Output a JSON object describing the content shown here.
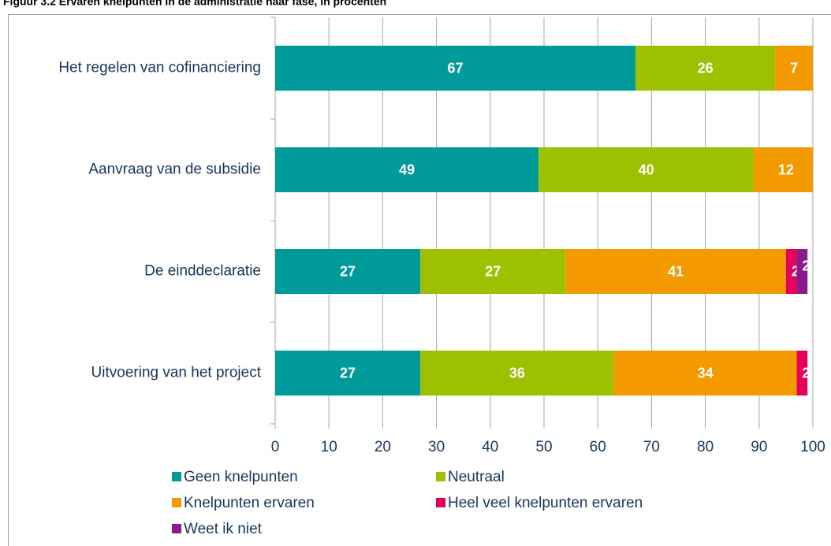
{
  "chart_data": {
    "type": "stacked-barh",
    "title": "Figuur 3.2        Ervaren knelpunten in de administratie naar fase, in procenten",
    "categories": [
      "Het regelen van cofinanciering",
      "Aanvraag van de subsidie",
      "De einddeclaratie",
      "Uitvoering van het project"
    ],
    "series": [
      {
        "name": "Geen knelpunten",
        "color": "#009a9a",
        "values": [
          67,
          49,
          27,
          27
        ]
      },
      {
        "name": "Neutraal",
        "color": "#9dc100",
        "values": [
          26,
          40,
          27,
          36
        ]
      },
      {
        "name": "Knelpunten ervaren",
        "color": "#f39a00",
        "values": [
          7,
          12,
          41,
          34
        ]
      },
      {
        "name": "Heel veel knelpunten ervaren",
        "color": "#e4005c",
        "values": [
          0,
          0,
          2,
          2
        ]
      },
      {
        "name": "Weet ik niet",
        "color": "#8b1b8a",
        "values": [
          null,
          null,
          2,
          null
        ]
      }
    ],
    "xlim": [
      0,
      100
    ],
    "xticks": [
      0,
      10,
      20,
      30,
      40,
      50,
      60,
      70,
      80,
      90,
      100
    ],
    "grid": true
  }
}
